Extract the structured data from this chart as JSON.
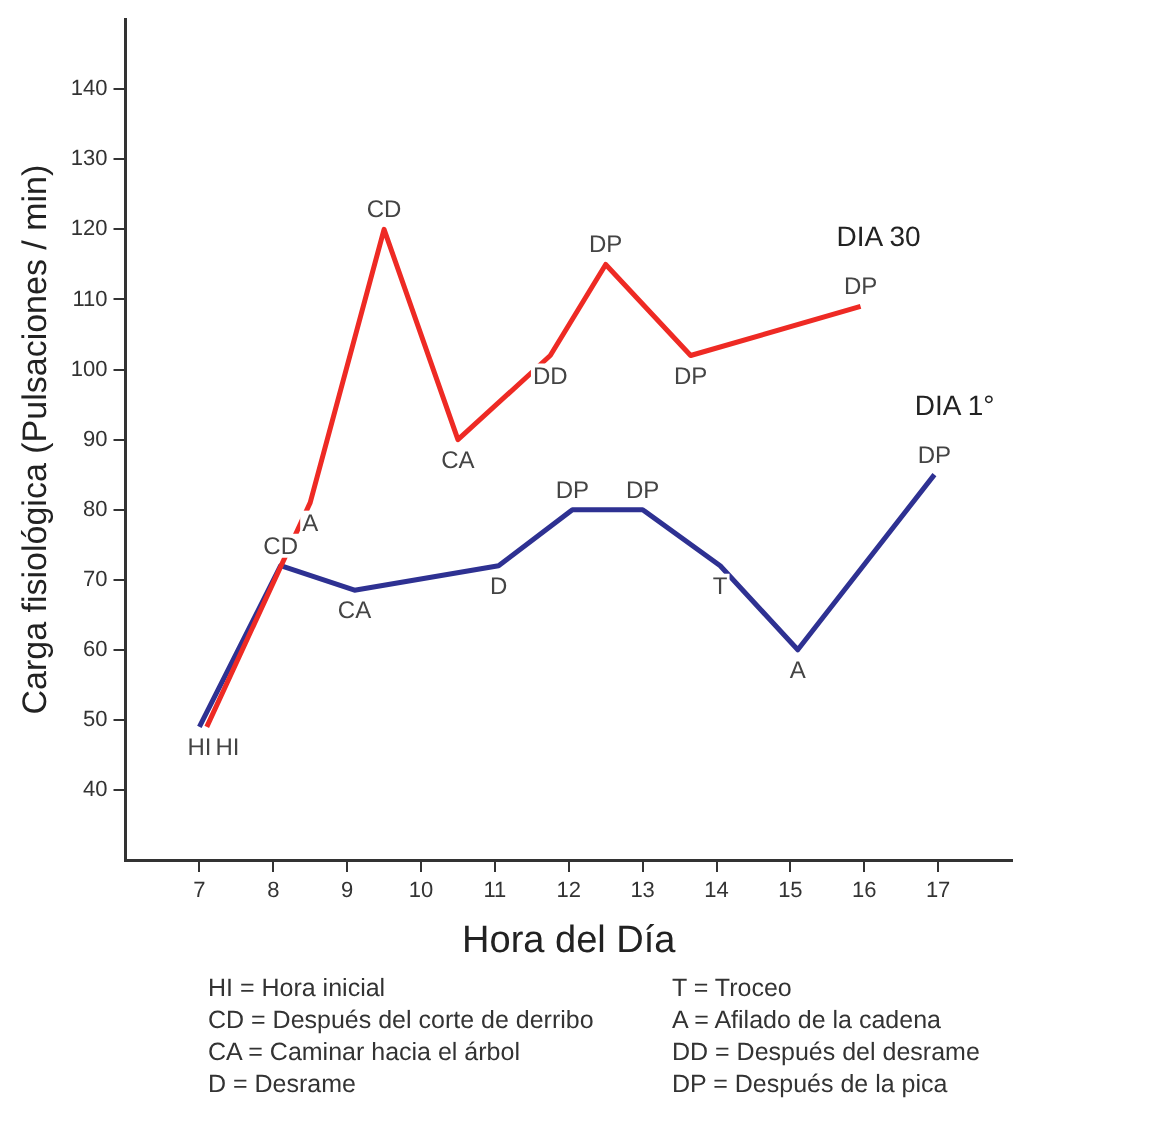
{
  "chart_data": {
    "type": "line",
    "xlabel": "Hora del Día",
    "ylabel": "Carga fisiológica (Pulsaciones / min)",
    "xlim": [
      6,
      18
    ],
    "xticks": [
      7,
      8,
      9,
      10,
      11,
      12,
      13,
      14,
      15,
      16,
      17
    ],
    "ylim": [
      30,
      150
    ],
    "yticks": [
      40,
      50,
      60,
      70,
      80,
      90,
      100,
      110,
      120,
      130,
      140
    ],
    "grid": false,
    "legend": false,
    "marker": "none",
    "line_style": "solid",
    "series": [
      {
        "name": "DIA 30",
        "color": "#ee2a24",
        "x": [
          7.1,
          8.5,
          9.5,
          10.5,
          11.75,
          12.5,
          13.65,
          15.95
        ],
        "values": [
          49,
          81,
          120,
          90,
          102,
          115,
          102,
          109
        ]
      },
      {
        "name": "DIA 1°",
        "color": "#2e3192",
        "x": [
          7,
          8.1,
          9.1,
          11.05,
          12.05,
          13,
          14.05,
          15.1,
          16.95
        ],
        "values": [
          49,
          72,
          68.5,
          72,
          80,
          80,
          72,
          60,
          85
        ]
      }
    ],
    "annotations": [
      {
        "text": "HI",
        "x": 7,
        "y": 49
      },
      {
        "text": "HI",
        "x": 7.1,
        "y": 49
      },
      {
        "text": "CD",
        "x": 8.1,
        "y": 72
      },
      {
        "text": "CA",
        "x": 9.1,
        "y": 68.5
      },
      {
        "text": "D",
        "x": 11.05,
        "y": 72
      },
      {
        "text": "DP",
        "x": 12.05,
        "y": 80
      },
      {
        "text": "DP",
        "x": 13,
        "y": 80
      },
      {
        "text": "T",
        "x": 14.05,
        "y": 72
      },
      {
        "text": "A",
        "x": 15.1,
        "y": 60
      },
      {
        "text": "DP",
        "x": 16.95,
        "y": 85
      },
      {
        "text": "A",
        "x": 8.5,
        "y": 81
      },
      {
        "text": "CD",
        "x": 9.5,
        "y": 120
      },
      {
        "text": "CA",
        "x": 10.5,
        "y": 90
      },
      {
        "text": "DD",
        "x": 11.75,
        "y": 102
      },
      {
        "text": "DP",
        "x": 12.5,
        "y": 115
      },
      {
        "text": "DP",
        "x": 13.65,
        "y": 102
      },
      {
        "text": "DP",
        "x": 15.95,
        "y": 109
      },
      "HI = Hora inicial",
      "T = Troceo",
      "CD = Después del corte de derribo",
      "A = Afilado de la cadena",
      "CA = Caminar hacia el árbol",
      "DD = Después del desrame",
      "D = Desrame",
      "DP = Después de la pica"
    ]
  }
}
